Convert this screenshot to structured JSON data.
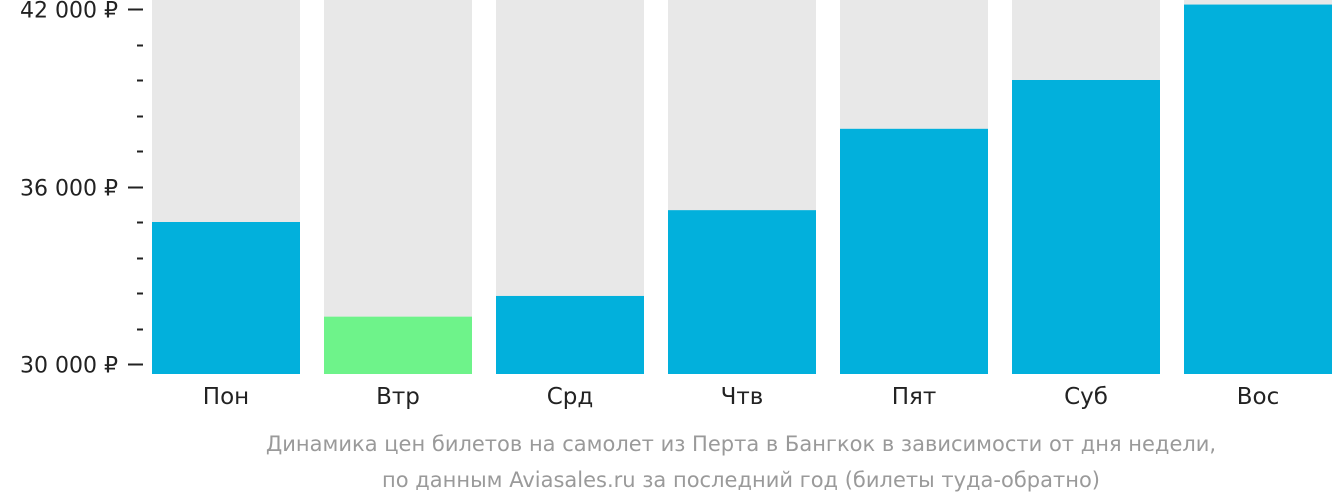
{
  "chart_data": {
    "type": "bar",
    "categories": [
      "Пон",
      "Втр",
      "Срд",
      "Чтв",
      "Пят",
      "Суб",
      "Вос"
    ],
    "values": [
      34800,
      31600,
      32300,
      35200,
      37950,
      39600,
      42150
    ],
    "highlight": [
      false,
      true,
      false,
      false,
      false,
      false,
      false
    ],
    "ylim": [
      30000,
      42500
    ],
    "yticks": [
      30000,
      36000,
      42000
    ],
    "ytick_labels": [
      "30 000 ₽",
      "36 000 ₽",
      "42 000 ₽"
    ],
    "minor_tick_step": 1200,
    "grid": false,
    "colors": {
      "bar": "#02b0dc",
      "highlight": "#6ef38a",
      "bar_background": "#e8e8e8",
      "axis": "#222222"
    }
  },
  "caption": {
    "line1": "Динамика цен билетов на самолет из Перта в Бангкок в зависимости от дня недели,",
    "line2": "по данным Aviasales.ru за последний год (билеты туда-обратно)"
  }
}
